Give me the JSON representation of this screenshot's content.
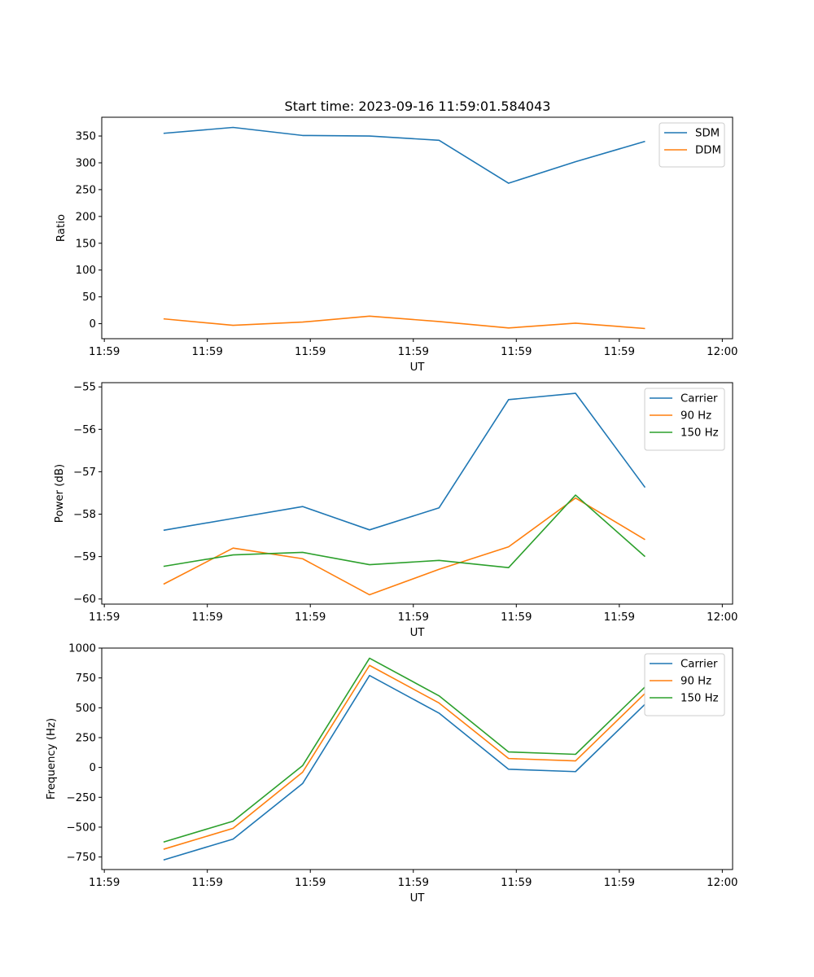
{
  "figure_title": "Start time: 2023-09-16 11:59:01.584043",
  "colors": {
    "blue": "#1f77b4",
    "orange": "#ff7f0e",
    "green": "#2ca02c",
    "axis": "#000000",
    "legend_border": "#cccccc"
  },
  "chart_data": [
    {
      "type": "line",
      "id": "ratio",
      "title": "Start time: 2023-09-16 11:59:01.584043",
      "xlabel": "UT",
      "ylabel": "Ratio",
      "ylim": [
        -28,
        385
      ],
      "yticks": [
        0,
        50,
        100,
        150,
        200,
        250,
        300,
        350
      ],
      "ytick_labels": [
        "0",
        "50",
        "100",
        "150",
        "200",
        "250",
        "300",
        "350"
      ],
      "xlim": [
        0,
        12.25
      ],
      "xticks": [
        0.05,
        2.05,
        4.05,
        6.05,
        8.05,
        10.05,
        12.05
      ],
      "xtick_labels": [
        "11:59",
        "11:59",
        "11:59",
        "11:59",
        "11:59",
        "11:59",
        "12:00"
      ],
      "x": [
        1.2,
        2.55,
        3.9,
        5.2,
        6.55,
        7.9,
        9.2,
        10.55
      ],
      "legend": "upper right",
      "series": [
        {
          "name": "SDM",
          "color": "#1f77b4",
          "values": [
            355,
            366,
            351,
            350,
            342,
            262,
            302,
            340
          ]
        },
        {
          "name": "DDM",
          "color": "#ff7f0e",
          "values": [
            9,
            -3,
            3,
            14,
            4,
            -8,
            1,
            -9
          ]
        }
      ]
    },
    {
      "type": "line",
      "id": "power",
      "title": "",
      "xlabel": "UT",
      "ylabel": "Power (dB)",
      "ylim": [
        -60.12,
        -54.9
      ],
      "yticks": [
        -60,
        -59,
        -58,
        -57,
        -56,
        -55
      ],
      "ytick_labels": [
        "−60",
        "−59",
        "−58",
        "−57",
        "−56",
        "−55"
      ],
      "xlim": [
        0,
        12.25
      ],
      "xticks": [
        0.05,
        2.05,
        4.05,
        6.05,
        8.05,
        10.05,
        12.05
      ],
      "xtick_labels": [
        "11:59",
        "11:59",
        "11:59",
        "11:59",
        "11:59",
        "11:59",
        "12:00"
      ],
      "x": [
        1.2,
        2.55,
        3.9,
        5.2,
        6.55,
        7.9,
        9.2,
        10.55
      ],
      "legend": "upper right",
      "series": [
        {
          "name": "Carrier",
          "color": "#1f77b4",
          "values": [
            -58.38,
            -58.1,
            -57.82,
            -58.37,
            -57.85,
            -55.3,
            -55.15,
            -57.37
          ]
        },
        {
          "name": "90 Hz",
          "color": "#ff7f0e",
          "values": [
            -59.65,
            -58.8,
            -59.05,
            -59.9,
            -59.3,
            -58.77,
            -57.62,
            -58.6
          ]
        },
        {
          "name": "150 Hz",
          "color": "#2ca02c",
          "values": [
            -59.23,
            -58.96,
            -58.9,
            -59.19,
            -59.09,
            -59.26,
            -57.55,
            -59.0
          ]
        }
      ]
    },
    {
      "type": "line",
      "id": "frequency",
      "title": "",
      "xlabel": "UT",
      "ylabel": "Frequency (Hz)",
      "ylim": [
        -855,
        1000
      ],
      "yticks": [
        -750,
        -500,
        -250,
        0,
        250,
        500,
        750,
        1000
      ],
      "ytick_labels": [
        "−750",
        "−500",
        "−250",
        "0",
        "250",
        "500",
        "750",
        "1000"
      ],
      "xlim": [
        0,
        12.25
      ],
      "xticks": [
        0.05,
        2.05,
        4.05,
        6.05,
        8.05,
        10.05,
        12.05
      ],
      "xtick_labels": [
        "11:59",
        "11:59",
        "11:59",
        "11:59",
        "11:59",
        "11:59",
        "12:00"
      ],
      "x": [
        1.2,
        2.55,
        3.9,
        5.2,
        6.55,
        7.9,
        9.2,
        10.55
      ],
      "legend": "upper right",
      "series": [
        {
          "name": "Carrier",
          "color": "#1f77b4",
          "values": [
            -775,
            -600,
            -135,
            770,
            455,
            -15,
            -35,
            530
          ]
        },
        {
          "name": "90 Hz",
          "color": "#ff7f0e",
          "values": [
            -685,
            -510,
            -40,
            855,
            540,
            75,
            55,
            620
          ]
        },
        {
          "name": "150 Hz",
          "color": "#2ca02c",
          "values": [
            -625,
            -450,
            15,
            915,
            600,
            130,
            110,
            675
          ]
        }
      ]
    }
  ]
}
